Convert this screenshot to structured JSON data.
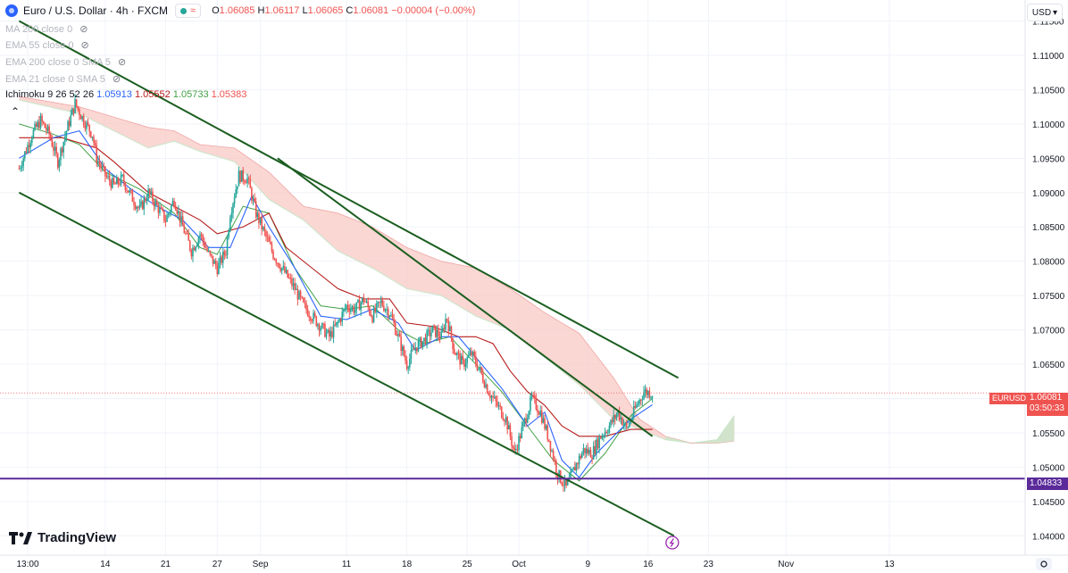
{
  "header": {
    "symbol_title": "Euro / U.S. Dollar · 4h · FXCM",
    "ohlc": {
      "o_label": "O",
      "o": "1.06085",
      "h_label": "H",
      "h": "1.06117",
      "l_label": "L",
      "l": "1.06065",
      "c_label": "C",
      "c": "1.06081",
      "change": "−0.00004 (−0.00%)"
    },
    "currency_button": "USD"
  },
  "indicators": [
    {
      "label": "MA 200 close 0"
    },
    {
      "label": "EMA 55 close 0"
    },
    {
      "label": "EMA 200 close 0 SMA 5"
    },
    {
      "label": "EMA 21 close 0 SMA 5"
    }
  ],
  "ichimoku": {
    "label": "Ichimoku 9 26 52 26",
    "v1": "1.05913",
    "v2": "1.05552",
    "v3": "1.05733",
    "v4": "1.05383"
  },
  "branding": {
    "logo_text": "TradingView"
  },
  "colors": {
    "up": "#26a69a",
    "down": "#ef5350",
    "conversion": "#2962ff",
    "base": "#b71c1c",
    "trendline": "#1b5e20",
    "support": "#5b2a9a",
    "cloud_bear": "#f8c9c4",
    "cloud_bull": "#c8e6c9",
    "lagging_span": "#43a047"
  },
  "chart_data": {
    "type": "candlestick",
    "symbol": "EURUSD",
    "timeframe": "4h",
    "y_axis": {
      "range": [
        1.0385,
        1.1165
      ],
      "ticks": [
        "1.11500",
        "1.11000",
        "1.10500",
        "1.10000",
        "1.09500",
        "1.09000",
        "1.08500",
        "1.08000",
        "1.07500",
        "1.07000",
        "1.06500",
        "1.06000",
        "1.05500",
        "1.05000",
        "1.04500",
        "1.04000"
      ]
    },
    "x_axis": {
      "ticks": [
        {
          "label": "13:00",
          "day": 0
        },
        {
          "label": "14",
          "day": 9
        },
        {
          "label": "21",
          "day": 16
        },
        {
          "label": "27",
          "day": 22
        },
        {
          "label": "Sep",
          "day": 27
        },
        {
          "label": "11",
          "day": 37
        },
        {
          "label": "18",
          "day": 44
        },
        {
          "label": "25",
          "day": 51
        },
        {
          "label": "Oct",
          "day": 57
        },
        {
          "label": "9",
          "day": 65
        },
        {
          "label": "16",
          "day": 72
        },
        {
          "label": "23",
          "day": 79
        },
        {
          "label": "Nov",
          "day": 88
        },
        {
          "label": "13",
          "day": 100
        }
      ]
    },
    "last_price": {
      "symbol_label": "EURUSD",
      "price": "1.06081",
      "countdown": "03:50:33"
    },
    "support_level": {
      "price": 1.04833,
      "label": "1.04833"
    },
    "close_path": [
      [
        -1,
        1.0935
      ],
      [
        0.5,
        1.0985
      ],
      [
        1.5,
        1.1005
      ],
      [
        2.5,
        1.0985
      ],
      [
        3.5,
        1.0945
      ],
      [
        4.5,
        1.099
      ],
      [
        5.5,
        1.103
      ],
      [
        6.5,
        1.1005
      ],
      [
        7.5,
        1.0985
      ],
      [
        8,
        1.095
      ],
      [
        9,
        1.0925
      ],
      [
        10,
        1.091
      ],
      [
        11,
        1.092
      ],
      [
        12,
        1.0895
      ],
      [
        13,
        1.0875
      ],
      [
        14,
        1.09
      ],
      [
        15,
        1.088
      ],
      [
        16,
        1.086
      ],
      [
        17,
        1.089
      ],
      [
        18,
        1.085
      ],
      [
        19,
        1.0815
      ],
      [
        20,
        1.084
      ],
      [
        21,
        1.081
      ],
      [
        22,
        1.079
      ],
      [
        23,
        1.0815
      ],
      [
        23.5,
        1.087
      ],
      [
        24.5,
        1.0925
      ],
      [
        25.5,
        1.092
      ],
      [
        26.5,
        1.087
      ],
      [
        27.5,
        1.084
      ],
      [
        28.5,
        1.081
      ],
      [
        29.5,
        1.079
      ],
      [
        30,
        1.078
      ],
      [
        31,
        1.076
      ],
      [
        32,
        1.0735
      ],
      [
        33,
        1.072
      ],
      [
        34,
        1.0705
      ],
      [
        35,
        1.069
      ],
      [
        36,
        1.071
      ],
      [
        37,
        1.0735
      ],
      [
        38,
        1.073
      ],
      [
        39,
        1.0745
      ],
      [
        40,
        1.072
      ],
      [
        41,
        1.074
      ],
      [
        42,
        1.0725
      ],
      [
        43,
        1.069
      ],
      [
        44,
        1.065
      ],
      [
        45,
        1.0675
      ],
      [
        46,
        1.0685
      ],
      [
        47,
        1.07
      ],
      [
        48,
        1.069
      ],
      [
        48.6,
        1.072
      ],
      [
        49.5,
        1.067
      ],
      [
        50.5,
        1.065
      ],
      [
        51.5,
        1.0665
      ],
      [
        52.5,
        1.064
      ],
      [
        53.5,
        1.061
      ],
      [
        54.5,
        1.059
      ],
      [
        55.5,
        1.057
      ],
      [
        56.5,
        1.052
      ],
      [
        57.5,
        1.056
      ],
      [
        58.5,
        1.06
      ],
      [
        59.5,
        1.058
      ],
      [
        60.5,
        1.054
      ],
      [
        61.5,
        1.049
      ],
      [
        62.5,
        1.047
      ],
      [
        63.5,
        1.05
      ],
      [
        64.5,
        1.0525
      ],
      [
        65.5,
        1.052
      ],
      [
        66.5,
        1.0545
      ],
      [
        67.5,
        1.056
      ],
      [
        68.5,
        1.058
      ],
      [
        69.5,
        1.0555
      ],
      [
        70.5,
        1.0585
      ],
      [
        71.5,
        1.061
      ],
      [
        72.5,
        1.0608
      ]
    ],
    "conversion_line": [
      [
        -1,
        1.095
      ],
      [
        3,
        1.098
      ],
      [
        6,
        1.099
      ],
      [
        9,
        1.0935
      ],
      [
        12,
        1.0905
      ],
      [
        15,
        1.088
      ],
      [
        18,
        1.086
      ],
      [
        21,
        1.082
      ],
      [
        23.5,
        1.082
      ],
      [
        26,
        1.0895
      ],
      [
        28,
        1.085
      ],
      [
        31,
        1.079
      ],
      [
        34,
        1.072
      ],
      [
        37,
        1.0715
      ],
      [
        40,
        1.073
      ],
      [
        43,
        1.071
      ],
      [
        45,
        1.067
      ],
      [
        48,
        1.069
      ],
      [
        50,
        1.069
      ],
      [
        52,
        1.066
      ],
      [
        55,
        1.0615
      ],
      [
        58,
        1.056
      ],
      [
        60,
        1.058
      ],
      [
        62,
        1.051
      ],
      [
        64,
        1.0485
      ],
      [
        66,
        1.052
      ],
      [
        68,
        1.0545
      ],
      [
        70,
        1.057
      ],
      [
        72.5,
        1.0591
      ]
    ],
    "base_line": [
      [
        -1,
        1.098
      ],
      [
        4,
        1.098
      ],
      [
        8,
        1.0965
      ],
      [
        10,
        1.0945
      ],
      [
        14,
        1.09
      ],
      [
        17,
        1.088
      ],
      [
        20,
        1.086
      ],
      [
        22,
        1.084
      ],
      [
        25,
        1.085
      ],
      [
        28,
        1.087
      ],
      [
        30,
        1.082
      ],
      [
        33,
        1.079
      ],
      [
        36,
        1.076
      ],
      [
        39,
        1.0745
      ],
      [
        42,
        1.0745
      ],
      [
        44,
        1.071
      ],
      [
        47,
        1.0705
      ],
      [
        50,
        1.069
      ],
      [
        52,
        1.069
      ],
      [
        54,
        1.068
      ],
      [
        56,
        1.064
      ],
      [
        58,
        1.061
      ],
      [
        60,
        1.059
      ],
      [
        62,
        1.056
      ],
      [
        64,
        1.0545
      ],
      [
        67,
        1.0545
      ],
      [
        70,
        1.0555
      ],
      [
        72.5,
        1.0555
      ]
    ],
    "lagging_span": [
      [
        -1,
        1.1
      ],
      [
        3,
        1.0985
      ],
      [
        6,
        1.097
      ],
      [
        9,
        1.093
      ],
      [
        13,
        1.0905
      ],
      [
        17,
        1.087
      ],
      [
        20,
        1.082
      ],
      [
        22,
        1.081
      ],
      [
        25,
        1.088
      ],
      [
        28,
        1.087
      ],
      [
        31,
        1.079
      ],
      [
        34,
        1.0735
      ],
      [
        37,
        1.073
      ],
      [
        40,
        1.0735
      ],
      [
        43,
        1.07
      ],
      [
        46,
        1.068
      ],
      [
        49,
        1.069
      ],
      [
        52,
        1.065
      ],
      [
        55,
        1.061
      ],
      [
        58,
        1.056
      ],
      [
        61,
        1.051
      ],
      [
        64,
        1.048
      ],
      [
        67,
        1.052
      ],
      [
        70,
        1.0575
      ],
      [
        72.5,
        1.06
      ]
    ],
    "cloud_span_a": [
      [
        -1,
        1.1035
      ],
      [
        6,
        1.1015
      ],
      [
        10,
        1.099
      ],
      [
        14,
        1.0965
      ],
      [
        17,
        1.0975
      ],
      [
        20,
        1.096
      ],
      [
        24,
        1.0945
      ],
      [
        28,
        1.089
      ],
      [
        32,
        1.086
      ],
      [
        36,
        1.0815
      ],
      [
        40,
        1.079
      ],
      [
        44,
        1.076
      ],
      [
        48,
        1.075
      ],
      [
        52,
        1.072
      ],
      [
        56,
        1.07
      ],
      [
        60,
        1.066
      ],
      [
        64,
        1.062
      ],
      [
        68,
        1.057
      ],
      [
        71,
        1.0555
      ],
      [
        74,
        1.054
      ],
      [
        77,
        1.0535
      ],
      [
        80,
        1.054
      ],
      [
        82,
        1.0575
      ]
    ],
    "cloud_span_b": [
      [
        -1,
        1.104
      ],
      [
        6,
        1.1025
      ],
      [
        10,
        1.101
      ],
      [
        14,
        1.0995
      ],
      [
        17,
        1.099
      ],
      [
        20,
        1.097
      ],
      [
        24,
        1.0965
      ],
      [
        28,
        1.093
      ],
      [
        32,
        1.088
      ],
      [
        36,
        1.087
      ],
      [
        40,
        1.085
      ],
      [
        44,
        1.082
      ],
      [
        48,
        1.08
      ],
      [
        52,
        1.079
      ],
      [
        56,
        1.076
      ],
      [
        60,
        1.0725
      ],
      [
        64,
        1.0695
      ],
      [
        68,
        1.063
      ],
      [
        71,
        1.057
      ],
      [
        74,
        1.0545
      ],
      [
        77,
        1.0535
      ],
      [
        80,
        1.0535
      ],
      [
        82,
        1.0538
      ]
    ],
    "trendlines": [
      {
        "name": "upper-channel-line",
        "from": [
          -1,
          1.115
        ],
        "to": [
          75.5,
          1.063
        ]
      },
      {
        "name": "mid-trendline",
        "from": [
          29,
          1.095
        ],
        "to": [
          72.5,
          1.0545
        ]
      },
      {
        "name": "lower-channel-line",
        "from": [
          -1,
          1.09
        ],
        "to": [
          75,
          1.04
        ]
      }
    ]
  }
}
